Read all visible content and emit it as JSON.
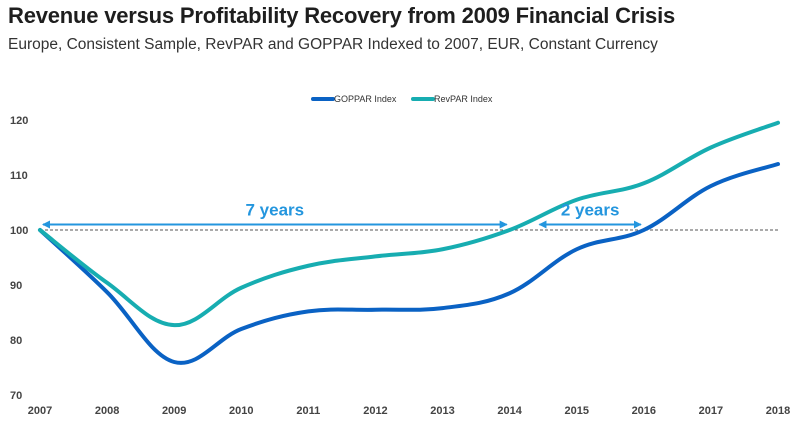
{
  "header": {
    "title": "Revenue versus Profitability Recovery from 2009 Financial Crisis",
    "subtitle": "Europe, Consistent Sample, RevPAR and GOPPAR Indexed to 2007, EUR, Constant Currency"
  },
  "colors": {
    "goppar": "#0a62c4",
    "revpar": "#17adb1",
    "annotation": "#2496de",
    "reference": "#555555"
  },
  "chart_data": {
    "type": "line",
    "title": "Revenue versus Profitability Recovery from 2009 Financial Crisis",
    "subtitle": "Europe, Consistent Sample, RevPAR and GOPPAR Indexed to 2007, EUR, Constant Currency",
    "xlabel": "",
    "ylabel": "",
    "categories": [
      "2007",
      "2008",
      "2009",
      "2010",
      "2011",
      "2012",
      "2013",
      "2014",
      "2015",
      "2016",
      "2017",
      "2018"
    ],
    "series": [
      {
        "name": "GOPPAR Index",
        "color": "#0a62c4",
        "values": [
          100,
          88.7,
          76,
          82,
          85.2,
          85.5,
          85.8,
          88.5,
          96.5,
          100,
          108,
          112
        ]
      },
      {
        "name": "RevPAR Index",
        "color": "#17adb1",
        "values": [
          100,
          90.4,
          82.7,
          89.5,
          93.5,
          95.2,
          96.5,
          100,
          105.5,
          108.5,
          115,
          119.5
        ]
      }
    ],
    "ylim": [
      70,
      120
    ],
    "yticks": [
      "70",
      "80",
      "90",
      "100",
      "110",
      "120"
    ],
    "grid": false,
    "legend": {
      "position": "top-center",
      "entries": [
        "GOPPAR Index",
        "RevPAR Index"
      ]
    },
    "reference_line": {
      "value": 100,
      "style": "dashed"
    },
    "annotations": [
      {
        "label": "7 years",
        "from": "2007",
        "to": "2014",
        "level": 101
      },
      {
        "label": "2 years",
        "from": "2014.4",
        "to": "2016",
        "level": 101
      }
    ]
  }
}
